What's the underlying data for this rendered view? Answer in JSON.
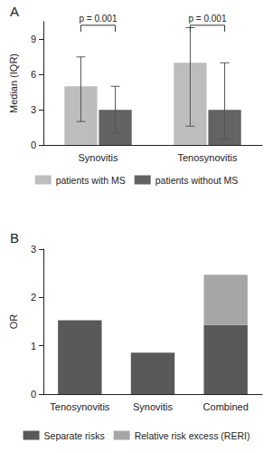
{
  "chart_data": [
    {
      "type": "bar",
      "title": "A",
      "y_label": "Median (IQR)",
      "categories": [
        "Synovitis",
        "Tenosynovitis"
      ],
      "series": [
        {
          "name": "patients with MS",
          "color": "#bdbdbd",
          "values": [
            5,
            7
          ],
          "iqr_low": [
            2,
            1.6
          ],
          "iqr_high": [
            7.5,
            10
          ]
        },
        {
          "name": "patients without MS",
          "color": "#636363",
          "values": [
            3,
            3
          ],
          "iqr_low": [
            1,
            0.5
          ],
          "iqr_high": [
            5,
            7
          ]
        }
      ],
      "ylim": [
        0,
        10.5
      ],
      "yticks": [
        0,
        3,
        6,
        9
      ],
      "legend": "bottom",
      "annotations": [
        {
          "text": "p = 0.001",
          "category": "Synovitis",
          "y": 10.2
        },
        {
          "text": "p = 0.001",
          "category": "Tenosynovitis",
          "y": 10.2
        }
      ]
    },
    {
      "type": "bar",
      "title": "B",
      "y_label": "OR",
      "categories": [
        "Tenosynovitis",
        "Synovitis",
        "Combined"
      ],
      "stacked": true,
      "series": [
        {
          "name": "Separate risks",
          "color": "#595959",
          "values": [
            1.53,
            0.86,
            1.43
          ]
        },
        {
          "name": "Relative risk excess (RERI)",
          "color": "#a6a6a6",
          "values": [
            null,
            null,
            1.04
          ]
        }
      ],
      "ylim": [
        0,
        3
      ],
      "yticks": [
        0,
        1,
        2,
        3
      ],
      "legend": "bottom"
    }
  ]
}
